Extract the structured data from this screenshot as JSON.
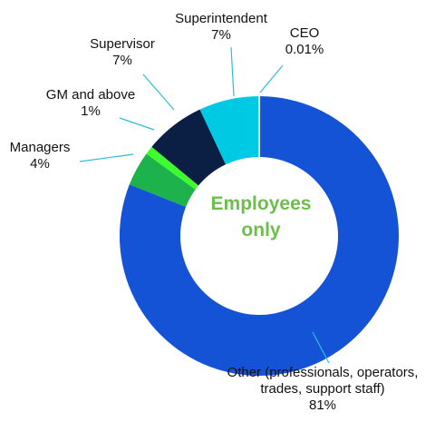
{
  "chart_data": {
    "type": "donut",
    "center_label": "Employees\nonly",
    "categories": [
      "CEO",
      "Other (professionals, operators,\ntrades, support staff)",
      "Managers",
      "GM and above",
      "Supervisor",
      "Superintendent"
    ],
    "values": [
      0.01,
      81,
      4,
      1,
      7,
      7
    ],
    "value_labels": [
      "0.01%",
      "81%",
      "4%",
      "1%",
      "7%",
      "7%"
    ],
    "colors": [
      "#d8f3f7",
      "#1553d6",
      "#1db24c",
      "#3dff2e",
      "#0b1f45",
      "#00c9e3"
    ]
  }
}
